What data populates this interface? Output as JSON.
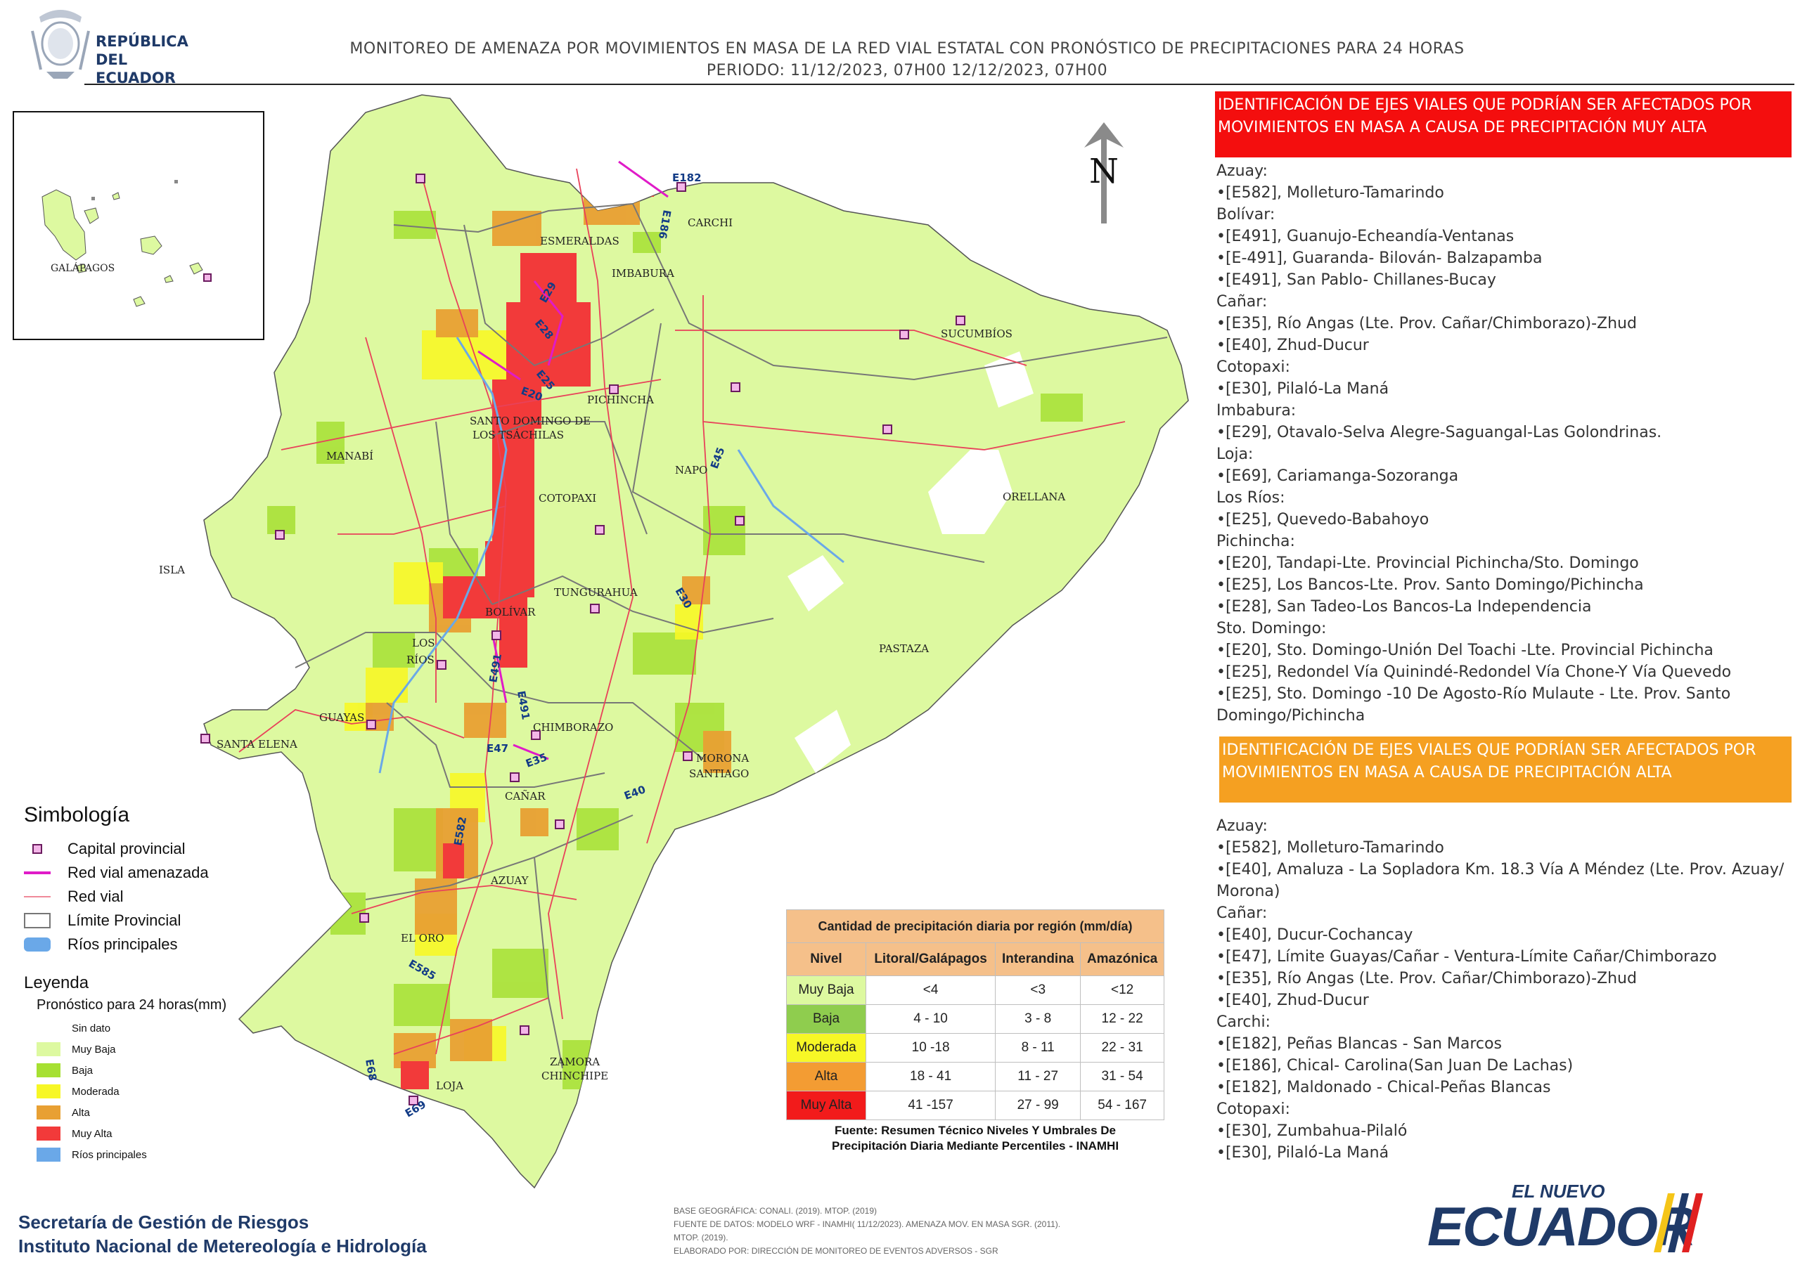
{
  "header": {
    "country_line1": "REPÚBLICA",
    "country_line2": "DEL ECUADOR",
    "title": "MONITOREO DE AMENAZA POR MOVIMIENTOS EN MASA DE LA RED VIAL  ESTATAL  CON PRONÓSTICO  DE  PRECIPITACIONES PARA 24 HORAS",
    "period": "PERIODO: 11/12/2023, 07H00 12/12/2023, 07H00"
  },
  "map": {
    "north_label": "N",
    "inset_label": "GALÁPAGOS",
    "isla_label": "ISLA",
    "province_labels": [
      "ESMERALDAS",
      "CARCHI",
      "IMBABURA",
      "SUCUMBÍOS",
      "PICHINCHA",
      "SANTO DOMINGO DE",
      "LOS TSÁCHILAS",
      "MANABÍ",
      "NAPO",
      "ORELLANA",
      "COTOPAXI",
      "TUNGURAHUA",
      "BOLÍVAR",
      "LOS",
      "RÍOS",
      "PASTAZA",
      "GUAYAS",
      "SANTA ELENA",
      "CHIMBORAZO",
      "MORONA",
      "SANTIAGO",
      "CAÑAR",
      "AZUAY",
      "EL ORO",
      "LOJA",
      "ZAMORA",
      "CHINCHIPE"
    ],
    "road_labels": [
      "E182",
      "E186",
      "E29",
      "E28",
      "E25",
      "E20",
      "E45",
      "E30",
      "E491",
      "E491",
      "E47",
      "E35",
      "E40",
      "E582",
      "E585",
      "E68",
      "E69"
    ]
  },
  "legend": {
    "symbology_title": "Simbología",
    "symbology": [
      {
        "label": "Capital provincial",
        "icon": "capital-square-icon"
      },
      {
        "label": "Red vial amenazada",
        "icon": "threatened-road-line-icon"
      },
      {
        "label": "Red vial",
        "icon": "road-line-icon"
      },
      {
        "label": "Límite Provincial",
        "icon": "province-boundary-icon"
      },
      {
        "label": "Ríos principales",
        "icon": "river-icon"
      }
    ],
    "legend_title": "Leyenda",
    "legend_subtitle": "Pronóstico para 24 horas(mm)",
    "levels": [
      {
        "label": "Sin dato",
        "color": "#ffffff"
      },
      {
        "label": "Muy Baja",
        "color": "#ddf9a0"
      },
      {
        "label": "Baja",
        "color": "#a6e032"
      },
      {
        "label": "Moderada",
        "color": "#f7f726"
      },
      {
        "label": "Alta",
        "color": "#e8a033"
      },
      {
        "label": "Muy Alta",
        "color": "#f23a3a"
      },
      {
        "label": "Ríos principales",
        "color": "#6aa8e8"
      }
    ]
  },
  "precip_table": {
    "caption": "Cantidad de precipitación diaria por región (mm/día)",
    "headers": [
      "Nivel",
      "Litoral/Galápagos",
      "Interandina",
      "Amazónica"
    ],
    "rows": [
      {
        "level": "Muy Baja",
        "color": "#ddf9a0",
        "values": [
          "<4",
          "<3",
          "<12"
        ]
      },
      {
        "level": "Baja",
        "color": "#8fcd4e",
        "values": [
          "4 - 10",
          "3 - 8",
          "12 - 22"
        ]
      },
      {
        "level": "Moderada",
        "color": "#f7f726",
        "values": [
          "10 -18",
          "8 - 11",
          "22 - 31"
        ]
      },
      {
        "level": "Alta",
        "color": "#f39c33",
        "values": [
          "18 - 41",
          "11 - 27",
          "31 - 54"
        ]
      },
      {
        "level": "Muy Alta",
        "color": "#f21b1b",
        "values": [
          "41 -157",
          "27 - 99",
          "54 - 167"
        ]
      }
    ],
    "source_line1": "Fuente: Resumen Técnico Niveles Y Umbrales De",
    "source_line2": "Precipitación Diaria Mediante Percentiles - INAMHI"
  },
  "footer": {
    "agency1": "Secretaría de Gestión de Riesgos",
    "agency2": "Instituto Nacional de Metereología e Hidrología",
    "source1": "BASE GEOGRÁFICA: CONALI. (2019). MTOP. (2019)",
    "source2": "FUENTE DE DATOS: MODELO WRF - INAMHI( 11/12/2023).  AMENAZA MOV. EN MASA SGR. (2011).",
    "source3": "MTOP. (2019).",
    "source4": "ELABORADO POR: DIRECCIÓN DE MONITOREO DE EVENTOS ADVERSOS - SGR",
    "brand_small": "EL NUEVO",
    "brand_big": "ECUADOR"
  },
  "alerts": {
    "muy_alta": {
      "title": "IDENTIFICACIÓN DE EJES VIALES QUE PODRÍAN SER AFECTADOS POR MOVIMIENTOS EN MASA A CAUSA DE PRECIPITACIÓN MUY ALTA",
      "color": "#f40e0e",
      "lines": [
        "Azuay:",
        "•[E582], Molleturo-Tamarindo",
        "Bolívar:",
        "•[E491], Guanujo-Echeandía-Ventanas",
        "•[E-491], Guaranda- Bilován- Balzapamba",
        "•[E491], San Pablo- Chillanes-Bucay",
        "Cañar:",
        "•[E35], Río Angas (Lte. Prov. Cañar/Chimborazo)-Zhud",
        "•[E40], Zhud-Ducur",
        "Cotopaxi:",
        "•[E30], Pilaló-La Maná",
        "Imbabura:",
        "•[E29], Otavalo-Selva Alegre-Saguangal-Las Golondrinas.",
        "Loja:",
        "•[E69], Cariamanga-Sozoranga",
        "Los Ríos:",
        "•[E25], Quevedo-Babahoyo",
        "Pichincha:",
        "•[E20], Tandapi-Lte. Provincial Pichincha/Sto. Domingo",
        "•[E25], Los Bancos-Lte. Prov. Santo Domingo/Pichincha",
        "•[E28], San Tadeo-Los Bancos-La Independencia",
        "Sto. Domingo:",
        "•[E20], Sto. Domingo-Unión Del Toachi -Lte. Provincial Pichincha",
        "•[E25], Redondel Vía Quinindé-Redondel Vía Chone-Y Vía Quevedo",
        "•[E25], Sto. Domingo -10 De Agosto-Río Mulaute - Lte. Prov. Santo Domingo/Pichincha"
      ]
    },
    "alta": {
      "title": "IDENTIFICACIÓN DE EJES VIALES QUE PODRÍAN SER AFECTADOS POR MOVIMIENTOS EN MASA A CAUSA DE PRECIPITACIÓN  ALTA",
      "color": "#f5a021",
      "lines": [
        "Azuay:",
        "•[E582], Molleturo-Tamarindo",
        "•[E40], Amaluza - La Sopladora Km. 18.3 Vía A Méndez (Lte. Prov. Azuay/ Morona)",
        "Cañar:",
        "•[E40], Ducur-Cochancay",
        "•[E47], Límite Guayas/Cañar - Ventura-Límite Cañar/Chimborazo",
        "•[E35], Río Angas (Lte. Prov. Cañar/Chimborazo)-Zhud",
        "•[E40], Zhud-Ducur",
        "Carchi:",
        "•[E182], Peñas Blancas - San Marcos",
        "•[E186], Chical- Carolina(San Juan De Lachas)",
        "•[E182], Maldonado - Chical-Peñas Blancas",
        "Cotopaxi:",
        "•[E30], Zumbahua-Pilaló",
        "•[E30], Pilaló-La Maná"
      ]
    }
  }
}
